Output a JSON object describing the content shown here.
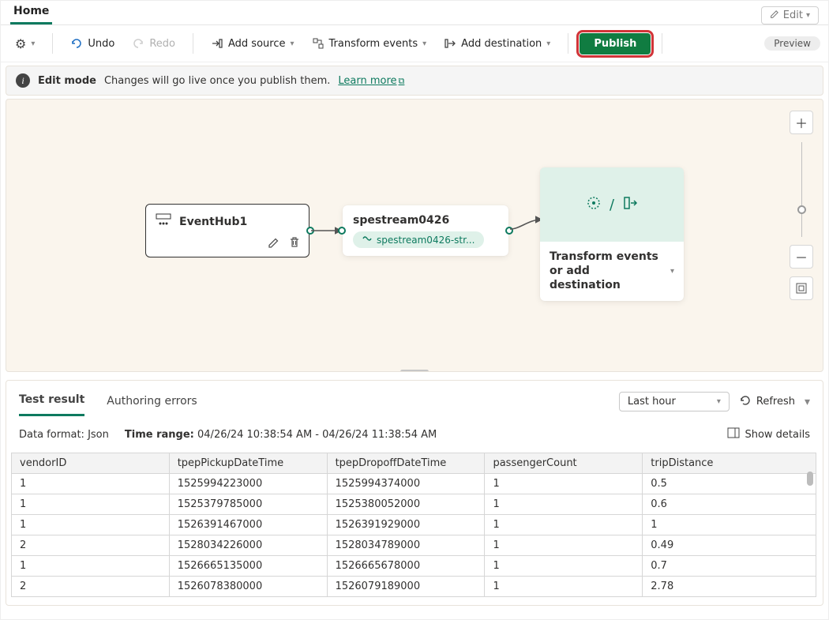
{
  "top": {
    "home_tab": "Home",
    "edit_label": "Edit"
  },
  "toolbar": {
    "undo": "Undo",
    "redo": "Redo",
    "add_source": "Add source",
    "transform_events": "Transform events",
    "add_destination": "Add destination",
    "publish": "Publish",
    "preview_badge": "Preview"
  },
  "notice": {
    "title": "Edit mode",
    "body": "Changes will go live once you publish them.",
    "learn_more": "Learn more"
  },
  "canvas": {
    "node1_title": "EventHub1",
    "node2_title": "spestream0426",
    "node2_pill": "spestream0426-str...",
    "node3_title": "Transform events or add destination",
    "node3_glyph_sep": "/"
  },
  "results": {
    "tabs": {
      "test_result": "Test result",
      "authoring_errors": "Authoring errors"
    },
    "time_select": "Last hour",
    "refresh": "Refresh",
    "data_format_label": "Data format:",
    "data_format_value": "Json",
    "time_range_label": "Time range:",
    "time_range_value": "04/26/24 10:38:54 AM - 04/26/24 11:38:54 AM",
    "show_details": "Show details",
    "columns": [
      "vendorID",
      "tpepPickupDateTime",
      "tpepDropoffDateTime",
      "passengerCount",
      "tripDistance"
    ],
    "rows": [
      [
        "1",
        "1525994223000",
        "1525994374000",
        "1",
        "0.5"
      ],
      [
        "1",
        "1525379785000",
        "1525380052000",
        "1",
        "0.6"
      ],
      [
        "1",
        "1526391467000",
        "1526391929000",
        "1",
        "1"
      ],
      [
        "2",
        "1528034226000",
        "1528034789000",
        "1",
        "0.49"
      ],
      [
        "1",
        "1526665135000",
        "1526665678000",
        "1",
        "0.7"
      ],
      [
        "2",
        "1526078380000",
        "1526079189000",
        "1",
        "2.78"
      ]
    ]
  },
  "colors": {
    "accent": "#107c41",
    "canvas_bg": "#faf5ed",
    "highlight_outline": "#d13438"
  }
}
